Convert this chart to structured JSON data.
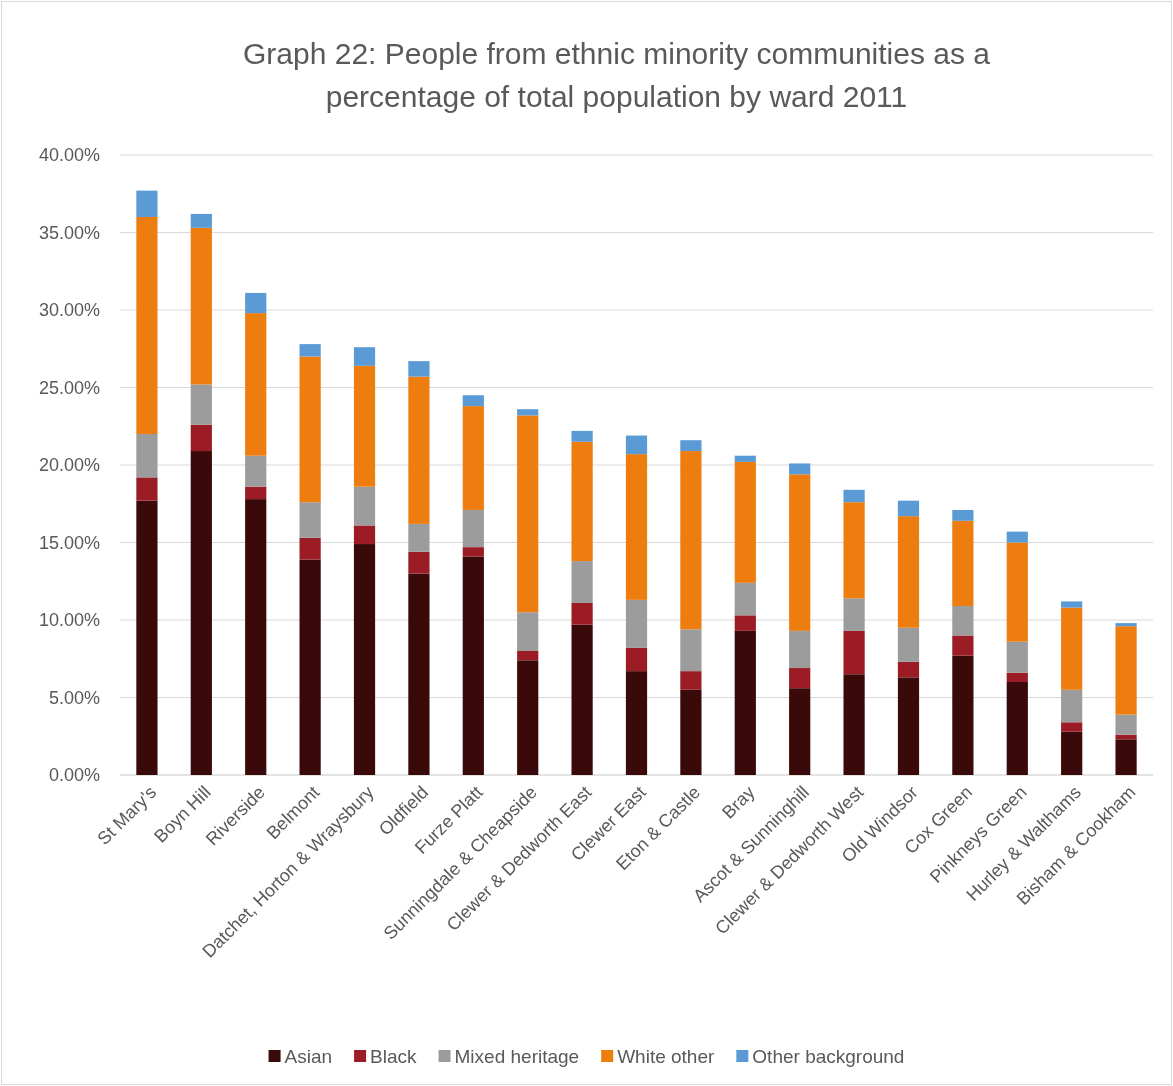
{
  "chart_data": {
    "type": "bar",
    "stacked": true,
    "title": "Graph 22: People from ethnic minority communities as a percentage of total population by ward 2011",
    "categories": [
      "St Mary's",
      "Boyn Hill",
      "Riverside",
      "Belmont",
      "Datchet, Horton & Wraysbury",
      "Oldfield",
      "Furze Platt",
      "Sunningdale & Cheapside",
      "Clewer & Dedworth East",
      "Clewer East",
      "Eton & Castle",
      "Bray",
      "Ascot & Sunninghill",
      "Clewer & Dedworth West",
      "Old Windsor",
      "Cox Green",
      "Pinkneys Green",
      "Hurley & Walthams",
      "Bisham & Cookham"
    ],
    "series": [
      {
        "name": "Asian",
        "color": "#3a0a0a",
        "values": [
          17.7,
          20.9,
          17.8,
          13.9,
          14.9,
          13.0,
          14.1,
          7.4,
          9.7,
          6.7,
          5.5,
          9.3,
          5.6,
          6.5,
          6.3,
          7.7,
          6.0,
          2.8,
          2.3
        ]
      },
      {
        "name": "Black",
        "color": "#9b1c24",
        "values": [
          1.5,
          1.7,
          0.8,
          1.4,
          1.2,
          1.4,
          0.6,
          0.6,
          1.4,
          1.5,
          1.2,
          1.0,
          1.3,
          2.8,
          1.0,
          1.3,
          0.6,
          0.6,
          0.3
        ]
      },
      {
        "name": "Mixed heritage",
        "color": "#9c9c9c",
        "values": [
          2.8,
          2.6,
          2.0,
          2.3,
          2.5,
          1.8,
          2.4,
          2.5,
          2.7,
          3.1,
          2.7,
          2.1,
          2.4,
          2.1,
          2.2,
          1.9,
          2.0,
          2.1,
          1.3
        ]
      },
      {
        "name": "White other",
        "color": "#ee7d10",
        "values": [
          14.0,
          10.1,
          9.2,
          9.4,
          7.8,
          9.5,
          6.7,
          12.7,
          7.7,
          9.4,
          11.5,
          7.8,
          10.1,
          6.2,
          7.2,
          5.5,
          6.4,
          5.3,
          5.7
        ]
      },
      {
        "name": "Other background",
        "color": "#5b9bd5",
        "values": [
          1.7,
          0.9,
          1.3,
          0.8,
          1.2,
          1.0,
          0.7,
          0.4,
          0.7,
          1.2,
          0.7,
          0.4,
          0.7,
          0.8,
          1.0,
          0.7,
          0.7,
          0.4,
          0.2
        ]
      }
    ],
    "ylim": [
      0,
      40
    ],
    "yticks": [
      {
        "value": 0,
        "label": "0.00%"
      },
      {
        "value": 5,
        "label": "5.00%"
      },
      {
        "value": 10,
        "label": "10.00%"
      },
      {
        "value": 15,
        "label": "15.00%"
      },
      {
        "value": 20,
        "label": "20.00%"
      },
      {
        "value": 25,
        "label": "25.00%"
      },
      {
        "value": 30,
        "label": "30.00%"
      },
      {
        "value": 35,
        "label": "35.00%"
      },
      {
        "value": 40,
        "label": "40.00%"
      }
    ],
    "grid": "y",
    "legend": "bottom"
  }
}
